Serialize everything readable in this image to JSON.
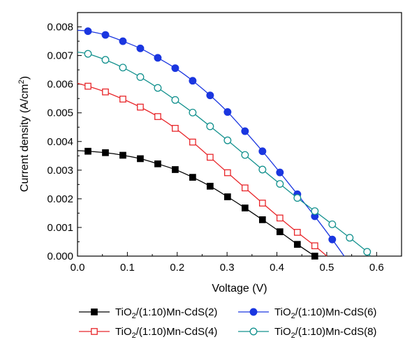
{
  "chart_data": {
    "type": "line",
    "xlabel": "Voltage (V)",
    "ylabel": "Current density (A/cm",
    "ylabel_sup": "2",
    "ylabel_tail": ")",
    "xlim": [
      0.0,
      0.65
    ],
    "ylim": [
      0.0,
      0.0085
    ],
    "x_ticks": [
      "0.0",
      "0.1",
      "0.2",
      "0.3",
      "0.4",
      "0.5",
      "0.6"
    ],
    "x_tick_values": [
      0.0,
      0.1,
      0.2,
      0.3,
      0.4,
      0.5,
      0.6
    ],
    "y_ticks": [
      "0.000",
      "0.001",
      "0.002",
      "0.003",
      "0.004",
      "0.005",
      "0.006",
      "0.007",
      "0.008"
    ],
    "y_tick_values": [
      0.0,
      0.001,
      0.002,
      0.003,
      0.004,
      0.005,
      0.006,
      0.007,
      0.008
    ],
    "grid": false,
    "legend_position": "bottom",
    "series": [
      {
        "name_main": "TiO",
        "name_sub": "2",
        "name_tail": "/(1:10)Mn-CdS(2)",
        "color": "#000000",
        "marker": "filled-square",
        "x": [
          0.0,
          0.021,
          0.056,
          0.091,
          0.126,
          0.161,
          0.196,
          0.231,
          0.266,
          0.301,
          0.336,
          0.371,
          0.406,
          0.441,
          0.476
        ],
        "y": [
          0.00368,
          0.00366,
          0.00361,
          0.00352,
          0.0034,
          0.00322,
          0.00302,
          0.00275,
          0.00244,
          0.00207,
          0.00168,
          0.00127,
          0.00085,
          0.00041,
          0.0
        ],
        "curve_end_x": 0.476
      },
      {
        "name_main": "TiO",
        "name_sub": "2",
        "name_tail": "/(1:10)Mn-CdS(4)",
        "color": "#e8262a",
        "marker": "open-square",
        "x": [
          0.0,
          0.021,
          0.056,
          0.091,
          0.126,
          0.161,
          0.196,
          0.231,
          0.266,
          0.301,
          0.336,
          0.371,
          0.406,
          0.441,
          0.476
        ],
        "y": [
          0.00603,
          0.00593,
          0.00573,
          0.00548,
          0.0052,
          0.00487,
          0.00446,
          0.00398,
          0.00345,
          0.00291,
          0.00238,
          0.00185,
          0.00133,
          0.00083,
          0.00036
        ],
        "curve_end_x": 0.5
      },
      {
        "name_main": "TiO",
        "name_sub": "2",
        "name_tail": "/(1:10)Mn-CdS(6)",
        "color": "#1a36e0",
        "marker": "filled-circle",
        "x": [
          0.0,
          0.021,
          0.056,
          0.091,
          0.126,
          0.161,
          0.196,
          0.231,
          0.266,
          0.301,
          0.336,
          0.371,
          0.406,
          0.441,
          0.476,
          0.511
        ],
        "y": [
          0.00788,
          0.00785,
          0.00772,
          0.0075,
          0.00725,
          0.00692,
          0.00656,
          0.00612,
          0.00561,
          0.00503,
          0.00436,
          0.00366,
          0.00292,
          0.00216,
          0.00139,
          0.00058
        ],
        "curve_end_x": 0.535
      },
      {
        "name_main": "TiO",
        "name_sub": "2",
        "name_tail": "/(1:10)Mn-CdS(8)",
        "color": "#13918e",
        "marker": "open-circle",
        "x": [
          0.0,
          0.021,
          0.056,
          0.091,
          0.126,
          0.161,
          0.196,
          0.231,
          0.266,
          0.301,
          0.336,
          0.371,
          0.406,
          0.441,
          0.476,
          0.511,
          0.546,
          0.581
        ],
        "y": [
          0.00712,
          0.00706,
          0.00685,
          0.00658,
          0.00625,
          0.00587,
          0.00545,
          0.00501,
          0.00453,
          0.00404,
          0.00353,
          0.00302,
          0.00252,
          0.00203,
          0.00157,
          0.00111,
          0.00064,
          0.00015
        ],
        "curve_end_x": 0.587
      }
    ]
  }
}
